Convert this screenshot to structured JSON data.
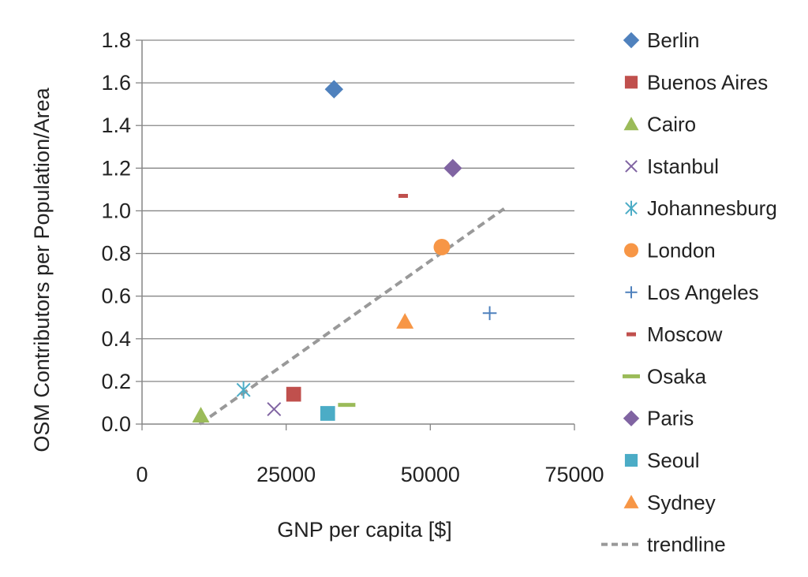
{
  "chart_data": {
    "type": "scatter",
    "title": "",
    "xlabel": "GNP per capita [$]",
    "ylabel": "OSM Contributors per Population/Area",
    "xlim": [
      0,
      75000
    ],
    "ylim": [
      0,
      1.8
    ],
    "xticks": [
      0,
      25000,
      50000,
      75000
    ],
    "xtick_labels": [
      "0",
      "25000",
      "50000",
      "75000"
    ],
    "yticks": [
      0,
      0.2,
      0.4,
      0.6,
      0.8,
      1.0,
      1.2,
      1.4,
      1.6,
      1.8
    ],
    "ytick_labels": [
      "0.0",
      "0.2",
      "0.4",
      "0.6",
      "0.8",
      "1.0",
      "1.2",
      "1.4",
      "1.6",
      "1.8"
    ],
    "grid": true,
    "legend_position": "right",
    "series": [
      {
        "name": "Berlin",
        "x": 33300,
        "y": 1.57,
        "marker": "diamond",
        "color": "#4F81BD"
      },
      {
        "name": "Buenos Aires",
        "x": 26300,
        "y": 0.14,
        "marker": "square",
        "color": "#C0504D"
      },
      {
        "name": "Cairo",
        "x": 10200,
        "y": 0.04,
        "marker": "triangle",
        "color": "#9BBB59"
      },
      {
        "name": "Istanbul",
        "x": 22900,
        "y": 0.07,
        "marker": "x",
        "color": "#8064A2"
      },
      {
        "name": "Johannesburg",
        "x": 17600,
        "y": 0.16,
        "marker": "star",
        "color": "#4BACC6"
      },
      {
        "name": "London",
        "x": 52000,
        "y": 0.83,
        "marker": "circle",
        "color": "#F79646"
      },
      {
        "name": "Los Angeles",
        "x": 60300,
        "y": 0.52,
        "marker": "plus",
        "color": "#4F81BD"
      },
      {
        "name": "Moscow",
        "x": 45300,
        "y": 1.07,
        "marker": "short-dash",
        "color": "#C0504D"
      },
      {
        "name": "Osaka",
        "x": 35500,
        "y": 0.09,
        "marker": "long-dash",
        "color": "#9BBB59"
      },
      {
        "name": "Paris",
        "x": 53900,
        "y": 1.2,
        "marker": "diamond",
        "color": "#8064A2"
      },
      {
        "name": "Seoul",
        "x": 32200,
        "y": 0.05,
        "marker": "square",
        "color": "#4BACC6"
      },
      {
        "name": "Sydney",
        "x": 45600,
        "y": 0.48,
        "marker": "triangle",
        "color": "#F79646"
      }
    ],
    "trendline": {
      "name": "trendline",
      "x": [
        10000,
        62800
      ],
      "y": [
        0.0,
        1.01
      ],
      "color": "#999999",
      "style": "dashed"
    }
  }
}
